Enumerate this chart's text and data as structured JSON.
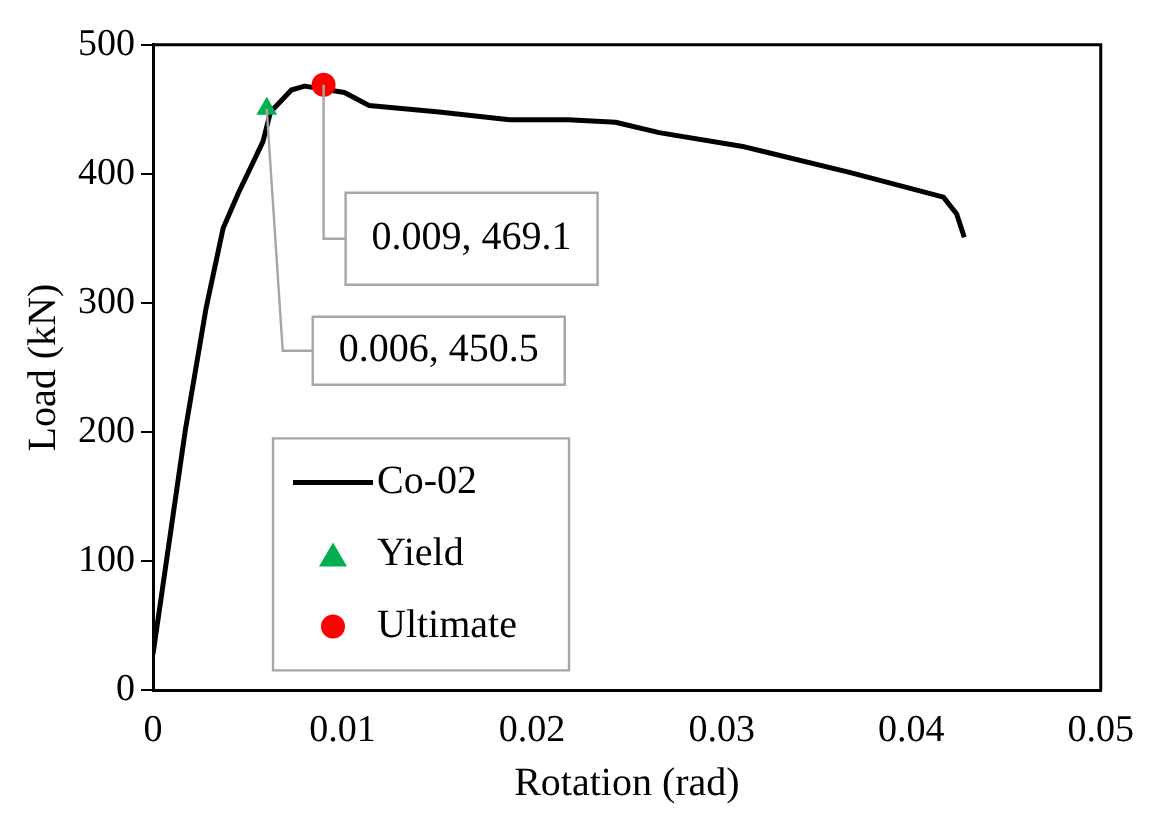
{
  "chart_data": {
    "type": "line",
    "xlabel": "Rotation (rad)",
    "ylabel": "Load (kN)",
    "xlim": [
      0,
      0.05
    ],
    "xticks": [
      0,
      0.01,
      0.02,
      0.03,
      0.04,
      0.05
    ],
    "ylim": [
      0,
      500
    ],
    "yticks": [
      0,
      100,
      200,
      300,
      400,
      500
    ],
    "grid": false,
    "legend": "bottom left",
    "series": [
      {
        "name": "Co-02",
        "color": "#000000",
        "marker": "none",
        "x": [
          0,
          0.0017,
          0.0028,
          0.0037,
          0.0045,
          0.0058,
          0.0062,
          0.0073,
          0.008,
          0.0101,
          0.0114,
          0.0151,
          0.0188,
          0.0219,
          0.0244,
          0.0267,
          0.0312,
          0.0368,
          0.0417,
          0.0424,
          0.0428
        ],
        "values": [
          28,
          201,
          296,
          358,
          385,
          425,
          448,
          465,
          468,
          463,
          453,
          448,
          442,
          442,
          440,
          432,
          421,
          401,
          382,
          369,
          351
        ]
      },
      {
        "name": "Yield",
        "type": "scatter",
        "color": "#00b050",
        "marker": "triangle",
        "x": [
          0.006
        ],
        "values": [
          450.5
        ]
      },
      {
        "name": "Ultimate",
        "type": "scatter",
        "color": "#ff0000",
        "marker": "circle",
        "x": [
          0.009
        ],
        "values": [
          469.1
        ]
      }
    ],
    "annotations": [
      {
        "text": "0.009, 469.1",
        "x": 0.009,
        "y": 469.1
      },
      {
        "text": "0.006, 450.5",
        "x": 0.006,
        "y": 450.5
      }
    ]
  }
}
